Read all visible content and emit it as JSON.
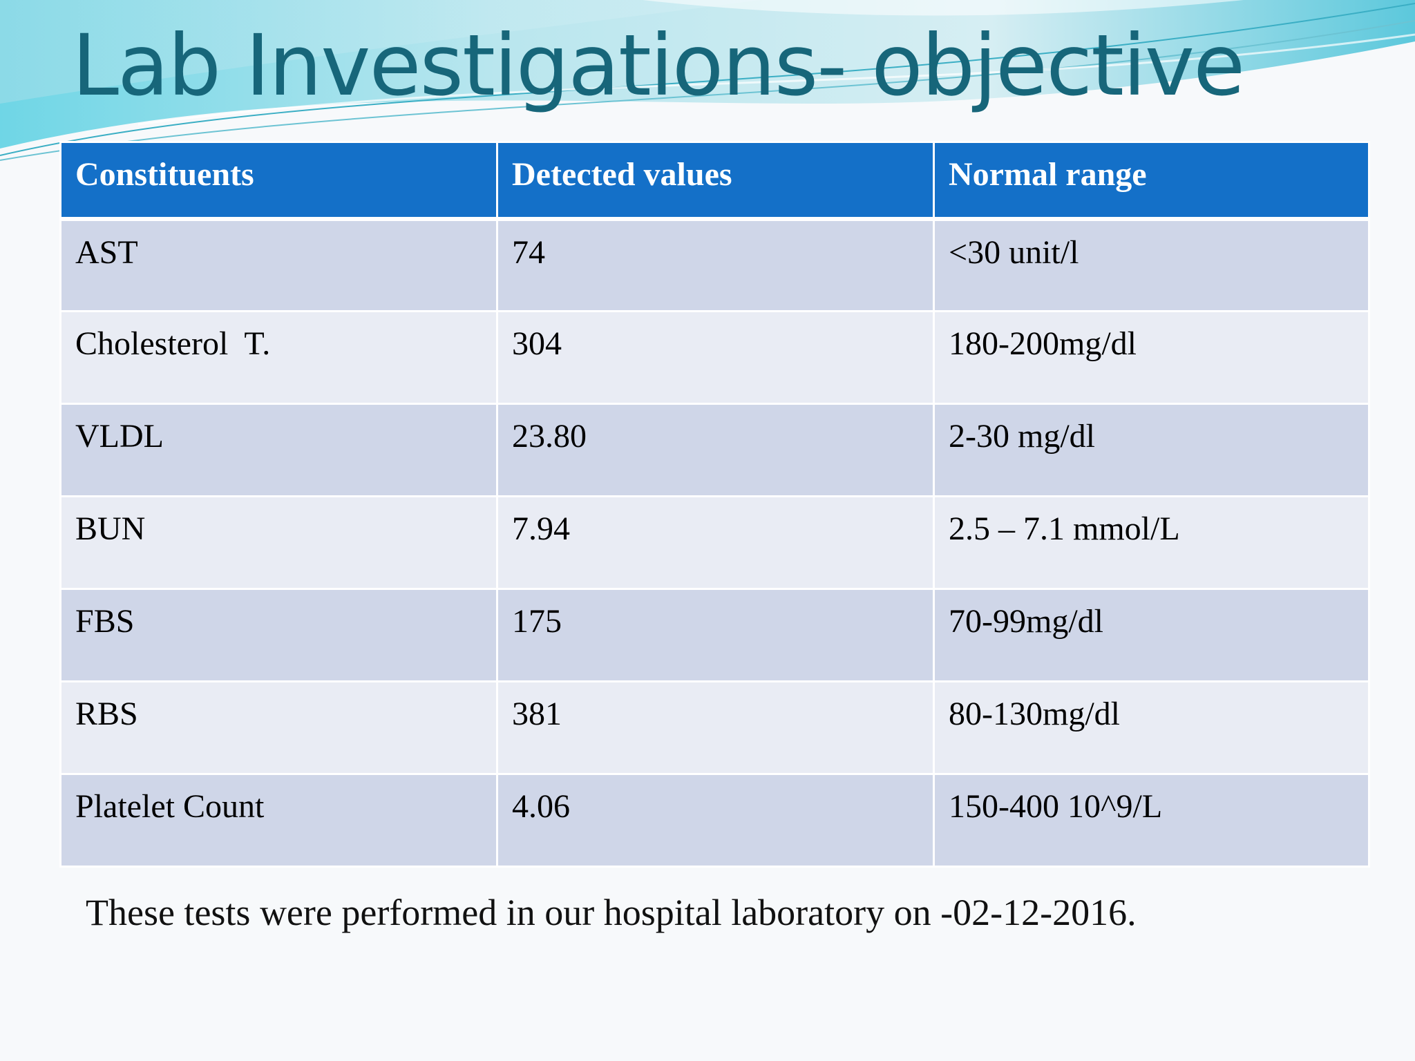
{
  "slide": {
    "title": "Lab Investigations- objective",
    "footnote": "These tests were performed in our hospital laboratory on -02-12-2016."
  },
  "table": {
    "headers": [
      "Constituents",
      "Detected values",
      "Normal range"
    ],
    "rows": [
      [
        "AST",
        "74",
        "<30 unit/l"
      ],
      [
        "Cholesterol  T.",
        "304",
        "180-200mg/dl"
      ],
      [
        "VLDL",
        "23.80",
        "2-30 mg/dl"
      ],
      [
        "BUN",
        "7.94",
        "2.5 – 7.1 mmol/L"
      ],
      [
        "FBS",
        "175",
        "70-99mg/dl"
      ],
      [
        "RBS",
        "381",
        "80-130mg/dl"
      ],
      [
        "Platelet Count",
        "4.06",
        "150-400 10^9/L"
      ]
    ]
  },
  "colors": {
    "title": "#17667a",
    "header_bg": "#1470c8",
    "row_odd": "#cfd6e8",
    "row_even": "#e9ecf4"
  }
}
